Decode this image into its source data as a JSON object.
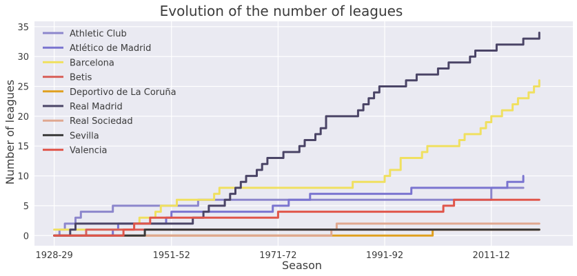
{
  "chart_data": {
    "type": "line",
    "title": "Evolution of the number of leagues",
    "xlabel": "Season",
    "ylabel": "Number of leagues",
    "ylim": [
      -1.7,
      35.9
    ],
    "yticks": [
      0,
      5,
      10,
      15,
      20,
      25,
      30,
      35
    ],
    "xtick_labels": [
      "1928-29",
      "1951-52",
      "1971-72",
      "1991-92",
      "2011-12"
    ],
    "xtick_years": [
      1929,
      1951,
      1971,
      1991,
      2011
    ],
    "xlim": [
      1925.3,
      2026.3
    ],
    "grid": true,
    "background": "#eaeaf2",
    "legend_position": "top-left",
    "step_lines": true,
    "series": [
      {
        "name": "Athletic Club",
        "color": "#8c86cc",
        "points": [
          [
            1929,
            0
          ],
          [
            1930,
            1
          ],
          [
            1931,
            2
          ],
          [
            1933,
            3
          ],
          [
            1934,
            4
          ],
          [
            1936,
            4
          ],
          [
            1940,
            5
          ],
          [
            1942,
            5
          ],
          [
            1956,
            6
          ],
          [
            2011,
            8
          ],
          [
            2017,
            8
          ]
        ]
      },
      {
        "name": "Atlético de Madrid",
        "color": "#7a74d0",
        "points": [
          [
            1929,
            0
          ],
          [
            1932,
            0
          ],
          [
            1934,
            0
          ],
          [
            1940,
            1
          ],
          [
            1941,
            2
          ],
          [
            1950,
            3
          ],
          [
            1951,
            4
          ],
          [
            1966,
            4
          ],
          [
            1970,
            5
          ],
          [
            1973,
            6
          ],
          [
            1977,
            7
          ],
          [
            1996,
            8
          ],
          [
            2014,
            9
          ],
          [
            2017,
            10
          ]
        ]
      },
      {
        "name": "Barcelona",
        "color": "#f0e060",
        "points": [
          [
            1929,
            1
          ],
          [
            1940,
            1
          ],
          [
            1944,
            2
          ],
          [
            1945,
            3
          ],
          [
            1948,
            4
          ],
          [
            1949,
            5
          ],
          [
            1952,
            6
          ],
          [
            1959,
            7
          ],
          [
            1960,
            8
          ],
          [
            1974,
            8
          ],
          [
            1985,
            9
          ],
          [
            1991,
            10
          ],
          [
            1992,
            11
          ],
          [
            1994,
            13
          ],
          [
            1998,
            14
          ],
          [
            1999,
            15
          ],
          [
            2005,
            16
          ],
          [
            2006,
            17
          ],
          [
            2009,
            18
          ],
          [
            2010,
            19
          ],
          [
            2011,
            20
          ],
          [
            2013,
            21
          ],
          [
            2015,
            22
          ],
          [
            2016,
            23
          ],
          [
            2018,
            24
          ],
          [
            2019,
            25
          ],
          [
            2020,
            26
          ]
        ]
      },
      {
        "name": "Betis",
        "color": "#d8605a",
        "points": [
          [
            1929,
            0
          ],
          [
            1935,
            1
          ],
          [
            2020,
            1
          ]
        ]
      },
      {
        "name": "Deportivo de La Coruña",
        "color": "#e0a020",
        "points": [
          [
            1929,
            0
          ],
          [
            2000,
            1
          ],
          [
            2020,
            1
          ]
        ]
      },
      {
        "name": "Real Madrid",
        "color": "#4a4466",
        "points": [
          [
            1929,
            0
          ],
          [
            1932,
            1
          ],
          [
            1933,
            2
          ],
          [
            1954,
            2
          ],
          [
            1955,
            3
          ],
          [
            1957,
            4
          ],
          [
            1958,
            5
          ],
          [
            1961,
            6
          ],
          [
            1962,
            7
          ],
          [
            1963,
            8
          ],
          [
            1964,
            9
          ],
          [
            1965,
            10
          ],
          [
            1967,
            11
          ],
          [
            1968,
            12
          ],
          [
            1969,
            13
          ],
          [
            1972,
            14
          ],
          [
            1975,
            15
          ],
          [
            1976,
            16
          ],
          [
            1978,
            17
          ],
          [
            1979,
            18
          ],
          [
            1980,
            20
          ],
          [
            1986,
            21
          ],
          [
            1987,
            22
          ],
          [
            1988,
            23
          ],
          [
            1989,
            24
          ],
          [
            1990,
            25
          ],
          [
            1995,
            26
          ],
          [
            1997,
            27
          ],
          [
            2001,
            28
          ],
          [
            2003,
            29
          ],
          [
            2007,
            30
          ],
          [
            2008,
            31
          ],
          [
            2012,
            32
          ],
          [
            2017,
            33
          ],
          [
            2020,
            34
          ]
        ]
      },
      {
        "name": "Real Sociedad",
        "color": "#e0a890",
        "points": [
          [
            1929,
            0
          ],
          [
            1981,
            1
          ],
          [
            1982,
            2
          ],
          [
            2020,
            2
          ]
        ]
      },
      {
        "name": "Sevilla",
        "color": "#3a3a3a",
        "points": [
          [
            1929,
            0
          ],
          [
            1946,
            1
          ],
          [
            2020,
            1
          ]
        ]
      },
      {
        "name": "Valencia",
        "color": "#e0554a",
        "points": [
          [
            1929,
            0
          ],
          [
            1942,
            1
          ],
          [
            1944,
            2
          ],
          [
            1947,
            3
          ],
          [
            1971,
            4
          ],
          [
            2002,
            5
          ],
          [
            2004,
            6
          ],
          [
            2020,
            6
          ]
        ]
      }
    ]
  }
}
